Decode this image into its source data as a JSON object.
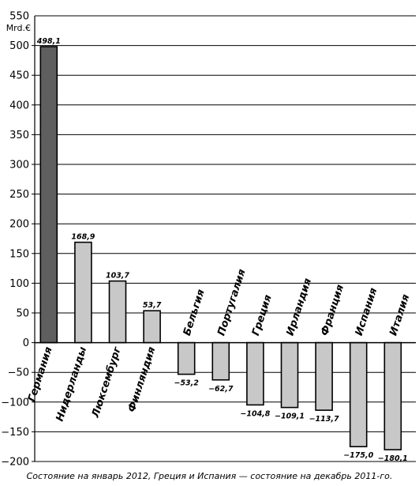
{
  "chart_data": {
    "type": "bar",
    "unit": "Mrd.€",
    "caption": "Состояние на январь 2012, Греция и Испания — состояние на декабрь 2011-го.",
    "ylim": [
      -200,
      550
    ],
    "yticks": [
      -200,
      -150,
      -100,
      -50,
      0,
      50,
      100,
      150,
      200,
      250,
      300,
      350,
      400,
      450,
      500,
      550
    ],
    "grid": true,
    "categories": [
      "Германия",
      "Нидерланды",
      "Люксембург",
      "Финляндия",
      "Бельгия",
      "Португалия",
      "Греция",
      "Ирландия",
      "Франция",
      "Испания",
      "Италия"
    ],
    "values": [
      498.1,
      168.9,
      103.7,
      53.7,
      -53.2,
      -62.7,
      -104.8,
      -109.1,
      -113.7,
      -175.0,
      -180.1
    ],
    "value_labels": [
      "498,1",
      "168,9",
      "103,7",
      "53,7",
      "−53,2",
      "−62,7",
      "−104,8",
      "−109,1",
      "−113,7",
      "−175,0",
      "−180,1"
    ],
    "colors": {
      "highlight": "#5f5f5f",
      "bar": "#c8c8c8",
      "stroke": "#000000",
      "grid": "#000000"
    },
    "highlight_index": 0
  }
}
